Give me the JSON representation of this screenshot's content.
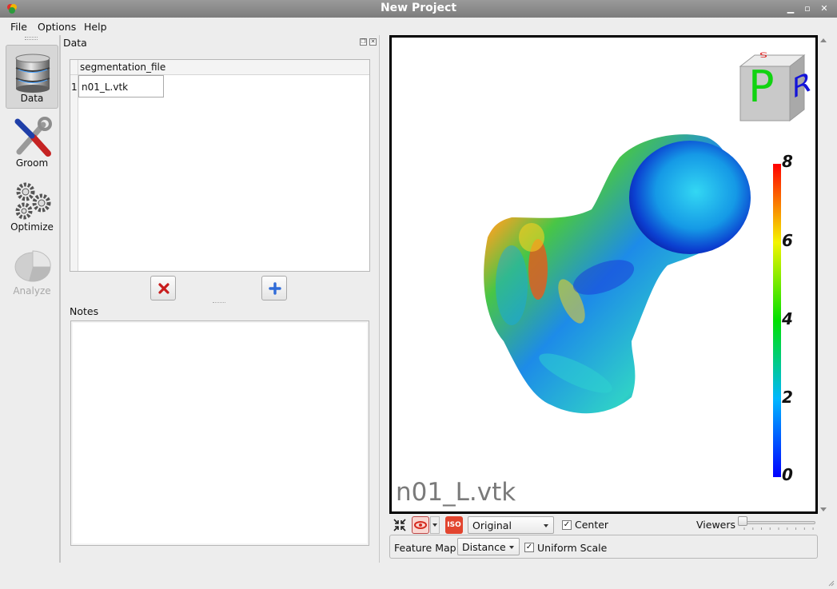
{
  "window": {
    "title": "New Project"
  },
  "menu": [
    "File",
    "Options",
    "Help"
  ],
  "toolbar": {
    "items": [
      {
        "label": "Data",
        "icon": "database-icon",
        "state": "active"
      },
      {
        "label": "Groom",
        "icon": "tools-icon",
        "state": "enabled"
      },
      {
        "label": "Optimize",
        "icon": "gears-icon",
        "state": "enabled"
      },
      {
        "label": "Analyze",
        "icon": "pie-chart-icon",
        "state": "disabled"
      }
    ]
  },
  "data_panel": {
    "title": "Data",
    "table": {
      "columns": [
        "segmentation_file"
      ],
      "rows": [
        {
          "index": "1",
          "segmentation_file": "n01_L.vtk"
        }
      ]
    },
    "remove_button_icon": "red-x-icon",
    "add_button_icon": "blue-plus-icon",
    "notes_label": "Notes",
    "notes_value": ""
  },
  "viewer": {
    "filename": "n01_L.vtk",
    "orientation_cube": {
      "front": "P",
      "side": "R",
      "top": "S"
    },
    "color_scale": {
      "min": 0,
      "max": 8,
      "labels": [
        "8",
        "6",
        "4",
        "2",
        "0"
      ]
    },
    "colors": {
      "high": "#ff0000",
      "mid": "#00ff00",
      "low": "#0000ff",
      "border": "#000000"
    }
  },
  "view_controls": {
    "view_mode": "Original",
    "center_label": "Center",
    "center_checked": true,
    "viewers_label": "Viewers",
    "viewers_value": 1
  },
  "feature_map": {
    "label": "Feature Map",
    "value": "Distance",
    "uniform_scale_label": "Uniform Scale",
    "uniform_scale_checked": true
  }
}
